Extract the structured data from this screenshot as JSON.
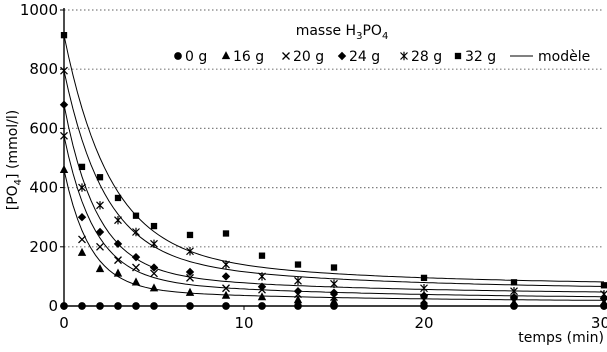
{
  "chart_data": {
    "type": "scatter",
    "title": "",
    "legend_title": "masse H₃PO₄",
    "legend_title_main": "masse H",
    "legend_title_sub1": "3",
    "legend_title_mid": "PO",
    "legend_title_sub2": "4",
    "xlabel": "temps (min)",
    "ylabel": "[PO₄] (mmol/l)",
    "ylabel_main": "[PO",
    "ylabel_sub": "4",
    "ylabel_end": "] (mmol/l)",
    "xlim": [
      0,
      30
    ],
    "ylim": [
      0,
      1000
    ],
    "xticks": [
      "0",
      "10",
      "20",
      "30"
    ],
    "yticks": [
      "0",
      "200",
      "400",
      "600",
      "800",
      "1000"
    ],
    "grid": "horizontal dotted",
    "legend_position": "top",
    "colors": {
      "markers": "#000000",
      "grid": "#7f7f7f",
      "axis": "#000000"
    },
    "series": [
      {
        "name": "0 g",
        "marker": "circle",
        "x": [
          0,
          1,
          2,
          3,
          4,
          5,
          7,
          9,
          11,
          13,
          15,
          20,
          25,
          30
        ],
        "y": [
          0,
          0,
          0,
          0,
          0,
          0,
          0,
          0,
          0,
          0,
          0,
          0,
          0,
          0
        ]
      },
      {
        "name": "16 g",
        "marker": "triangle",
        "x": [
          0,
          1,
          2,
          3,
          4,
          5,
          7,
          9,
          11,
          13,
          15,
          20,
          25,
          30
        ],
        "y": [
          460,
          180,
          125,
          110,
          80,
          60,
          45,
          35,
          30,
          20,
          15,
          10,
          10,
          10
        ]
      },
      {
        "name": "20 g",
        "marker": "x",
        "x": [
          0,
          1,
          2,
          3,
          4,
          5,
          7,
          9,
          11,
          13,
          15,
          20,
          25,
          30
        ],
        "y": [
          575,
          225,
          200,
          155,
          130,
          110,
          95,
          60,
          55,
          40,
          30,
          20,
          15,
          15
        ]
      },
      {
        "name": "24 g",
        "marker": "diamond",
        "x": [
          0,
          1,
          2,
          3,
          4,
          5,
          7,
          9,
          11,
          13,
          15,
          20,
          25,
          30
        ],
        "y": [
          680,
          300,
          250,
          210,
          165,
          130,
          115,
          100,
          65,
          50,
          45,
          35,
          30,
          25
        ]
      },
      {
        "name": "28 g",
        "marker": "asterisk",
        "x": [
          0,
          1,
          2,
          3,
          4,
          5,
          7,
          9,
          11,
          13,
          15,
          20,
          25,
          30
        ],
        "y": [
          795,
          400,
          340,
          290,
          250,
          210,
          185,
          140,
          100,
          85,
          75,
          60,
          50,
          40
        ]
      },
      {
        "name": "32 g",
        "marker": "square",
        "x": [
          0,
          1,
          2,
          3,
          4,
          5,
          7,
          9,
          11,
          13,
          15,
          20,
          25,
          30
        ],
        "y": [
          915,
          470,
          435,
          365,
          305,
          270,
          240,
          245,
          170,
          140,
          130,
          95,
          80,
          70
        ]
      }
    ],
    "model_legend_label": "modèle",
    "model_curves": [
      {
        "a": 0,
        "b": 0,
        "k": 0.5,
        "y0": 0
      },
      {
        "a": 400,
        "b": 15,
        "k": 0.7,
        "y0": 460
      },
      {
        "a": 480,
        "b": 25,
        "k": 0.6,
        "y0": 575
      },
      {
        "a": 560,
        "b": 40,
        "k": 0.55,
        "y0": 680
      },
      {
        "a": 620,
        "b": 55,
        "k": 0.45,
        "y0": 795
      },
      {
        "a": 720,
        "b": 70,
        "k": 0.4,
        "y0": 915
      }
    ]
  }
}
